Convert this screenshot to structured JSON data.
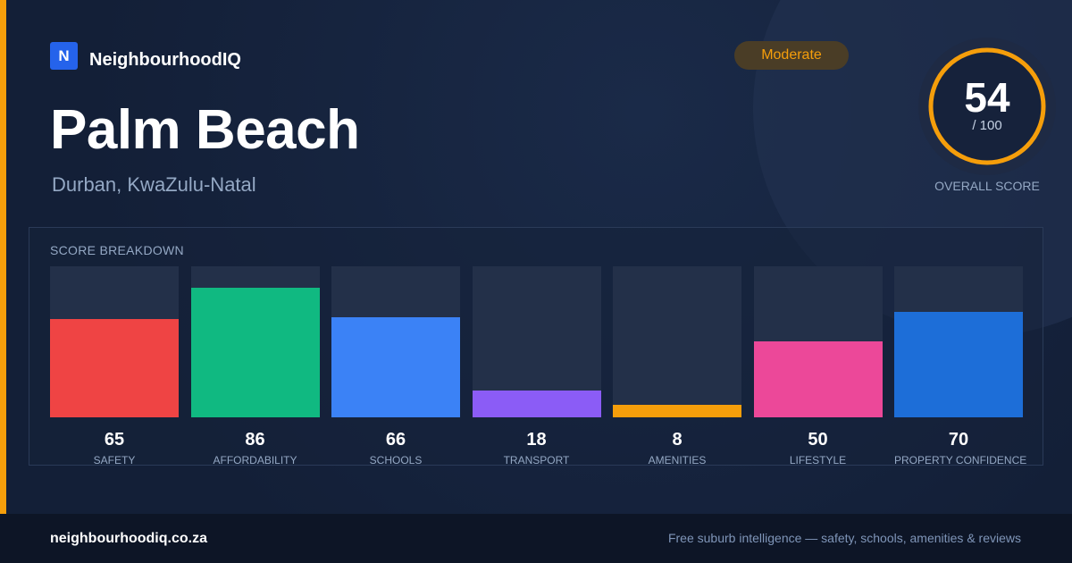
{
  "brand": {
    "logo_letter": "N",
    "name": "NeighbourhoodIQ"
  },
  "suburb": {
    "name": "Palm Beach",
    "location": "Durban, KwaZulu-Natal"
  },
  "badge": {
    "label": "Moderate"
  },
  "overall": {
    "value": "54",
    "max_label": "/ 100",
    "label": "OVERALL SCORE",
    "score": 54,
    "max": 100
  },
  "colors": {
    "accent": "#f59e0b",
    "safety": "#ef4444",
    "affordability": "#10b981",
    "schools": "#3b82f6",
    "transport": "#8b5cf6",
    "amenities": "#f59e0b",
    "lifestyle": "#ec4899",
    "property_confidence": "#1d6ed8"
  },
  "breakdown": {
    "title": "SCORE BREAKDOWN"
  },
  "chart_data": {
    "type": "bar",
    "categories": [
      "SAFETY",
      "AFFORDABILITY",
      "SCHOOLS",
      "TRANSPORT",
      "AMENITIES",
      "LIFESTYLE",
      "PROPERTY CONFIDENCE"
    ],
    "values": [
      65,
      86,
      66,
      18,
      8,
      50,
      70
    ],
    "value_labels": [
      "65",
      "86",
      "66",
      "18",
      "8",
      "50",
      "70"
    ],
    "bar_colors": [
      "#ef4444",
      "#10b981",
      "#3b82f6",
      "#8b5cf6",
      "#f59e0b",
      "#ec4899",
      "#1d6ed8"
    ],
    "ylim": [
      0,
      100
    ],
    "title": "",
    "xlabel": "",
    "ylabel": ""
  },
  "footer": {
    "url": "neighbourhoodiq.co.za",
    "tagline": "Free suburb intelligence — safety, schools, amenities & reviews"
  }
}
